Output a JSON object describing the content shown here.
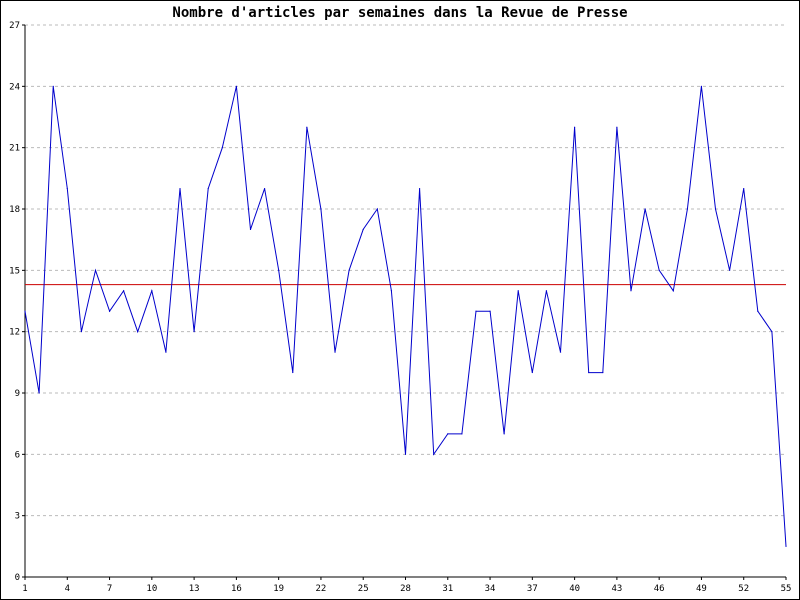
{
  "chart_data": {
    "type": "line",
    "title": "Nombre d'articles par semaines dans la Revue de Presse",
    "xlabel": "",
    "ylabel": "",
    "xlim": [
      1,
      55
    ],
    "ylim": [
      0,
      27
    ],
    "x_ticks": [
      1,
      4,
      7,
      10,
      13,
      16,
      19,
      22,
      25,
      28,
      31,
      34,
      37,
      40,
      43,
      46,
      49,
      52,
      55
    ],
    "y_ticks": [
      0,
      3,
      6,
      9,
      12,
      15,
      18,
      21,
      24,
      27
    ],
    "grid": "horizontal dashed",
    "series": [
      {
        "color": "#0000cc",
        "x": [
          1,
          2,
          3,
          4,
          5,
          6,
          7,
          8,
          9,
          10,
          11,
          12,
          13,
          14,
          15,
          16,
          17,
          18,
          19,
          20,
          21,
          22,
          23,
          24,
          25,
          26,
          27,
          28,
          29,
          30,
          31,
          32,
          33,
          34,
          35,
          36,
          37,
          38,
          39,
          40,
          41,
          42,
          43,
          44,
          45,
          46,
          47,
          48,
          49,
          50,
          51,
          52,
          53,
          54,
          55
        ],
        "values": [
          13,
          9,
          24,
          19,
          12,
          15,
          13,
          14,
          12,
          14,
          11,
          19,
          12,
          19,
          21,
          24,
          17,
          19,
          15,
          10,
          22,
          18,
          11,
          15,
          17,
          18,
          14,
          6,
          19,
          6,
          7,
          7,
          13,
          13,
          7,
          14,
          10,
          14,
          11,
          22,
          10,
          10,
          22,
          14,
          18,
          15,
          14,
          18,
          24,
          18,
          15,
          19,
          13,
          12,
          1.5
        ]
      }
    ],
    "average_line": {
      "value": 14.3,
      "color": "#cc0000"
    },
    "grid_color": "#bbbbbb"
  }
}
